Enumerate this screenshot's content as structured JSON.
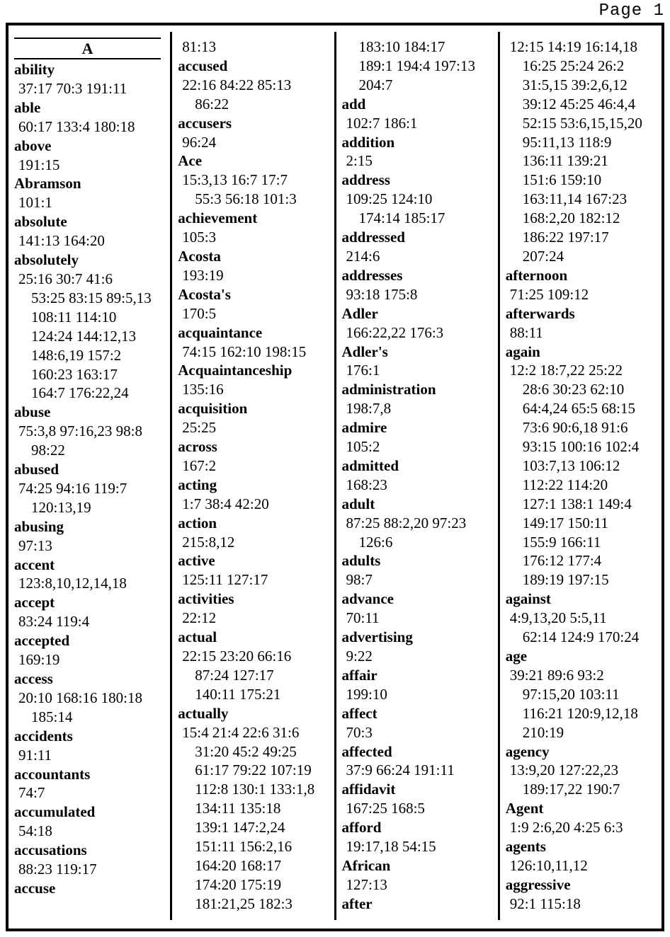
{
  "page_label": "Page 1",
  "columns": [
    {
      "lines": [
        {
          "type": "section",
          "text": "A"
        },
        {
          "type": "word",
          "text": "ability"
        },
        {
          "type": "ref1",
          "text": "37:17 70:3 191:11"
        },
        {
          "type": "word",
          "text": "able"
        },
        {
          "type": "ref1",
          "text": "60:17 133:4 180:18"
        },
        {
          "type": "word",
          "text": "above"
        },
        {
          "type": "ref1",
          "text": "191:15"
        },
        {
          "type": "word",
          "text": "Abramson"
        },
        {
          "type": "ref1",
          "text": "101:1"
        },
        {
          "type": "word",
          "text": "absolute"
        },
        {
          "type": "ref1",
          "text": "141:13 164:20"
        },
        {
          "type": "word",
          "text": "absolutely"
        },
        {
          "type": "ref1",
          "text": "25:16 30:7 41:6"
        },
        {
          "type": "ref2",
          "text": "53:25 83:15 89:5,13"
        },
        {
          "type": "ref2",
          "text": "108:11 114:10"
        },
        {
          "type": "ref2",
          "text": "124:24 144:12,13"
        },
        {
          "type": "ref2",
          "text": "148:6,19 157:2"
        },
        {
          "type": "ref2",
          "text": "160:23 163:17"
        },
        {
          "type": "ref2",
          "text": "164:7 176:22,24"
        },
        {
          "type": "word",
          "text": "abuse"
        },
        {
          "type": "ref1",
          "text": "75:3,8 97:16,23 98:8"
        },
        {
          "type": "ref2",
          "text": "98:22"
        },
        {
          "type": "word",
          "text": "abused"
        },
        {
          "type": "ref1",
          "text": "74:25 94:16 119:7"
        },
        {
          "type": "ref2",
          "text": "120:13,19"
        },
        {
          "type": "word",
          "text": "abusing"
        },
        {
          "type": "ref1",
          "text": "97:13"
        },
        {
          "type": "word",
          "text": "accent"
        },
        {
          "type": "ref1",
          "text": "123:8,10,12,14,18"
        },
        {
          "type": "word",
          "text": "accept"
        },
        {
          "type": "ref1",
          "text": "83:24 119:4"
        },
        {
          "type": "word",
          "text": "accepted"
        },
        {
          "type": "ref1",
          "text": "169:19"
        },
        {
          "type": "word",
          "text": "access"
        },
        {
          "type": "ref1",
          "text": "20:10 168:16 180:18"
        },
        {
          "type": "ref2",
          "text": "185:14"
        },
        {
          "type": "word",
          "text": "accidents"
        },
        {
          "type": "ref1",
          "text": "91:11"
        },
        {
          "type": "word",
          "text": "accountants"
        },
        {
          "type": "ref1",
          "text": "74:7"
        },
        {
          "type": "word",
          "text": "accumulated"
        },
        {
          "type": "ref1",
          "text": "54:18"
        },
        {
          "type": "word",
          "text": "accusations"
        },
        {
          "type": "ref1",
          "text": "88:23 119:17"
        },
        {
          "type": "word",
          "text": "accuse"
        }
      ]
    },
    {
      "lines": [
        {
          "type": "ref1",
          "text": "81:13"
        },
        {
          "type": "word",
          "text": "accused"
        },
        {
          "type": "ref1",
          "text": "22:16 84:22 85:13"
        },
        {
          "type": "ref2",
          "text": "86:22"
        },
        {
          "type": "word",
          "text": "accusers"
        },
        {
          "type": "ref1",
          "text": "96:24"
        },
        {
          "type": "word",
          "text": "Ace"
        },
        {
          "type": "ref1",
          "text": "15:3,13 16:7 17:7"
        },
        {
          "type": "ref2",
          "text": "55:3 56:18 101:3"
        },
        {
          "type": "word",
          "text": "achievement"
        },
        {
          "type": "ref1",
          "text": "105:3"
        },
        {
          "type": "word",
          "text": "Acosta"
        },
        {
          "type": "ref1",
          "text": "193:19"
        },
        {
          "type": "word",
          "text": "Acosta's"
        },
        {
          "type": "ref1",
          "text": "170:5"
        },
        {
          "type": "word",
          "text": "acquaintance"
        },
        {
          "type": "ref1",
          "text": "74:15 162:10 198:15"
        },
        {
          "type": "word",
          "text": "Acquaintanceship"
        },
        {
          "type": "ref1",
          "text": "135:16"
        },
        {
          "type": "word",
          "text": "acquisition"
        },
        {
          "type": "ref1",
          "text": "25:25"
        },
        {
          "type": "word",
          "text": "across"
        },
        {
          "type": "ref1",
          "text": "167:2"
        },
        {
          "type": "word",
          "text": "acting"
        },
        {
          "type": "ref1",
          "text": "1:7 38:4 42:20"
        },
        {
          "type": "word",
          "text": "action"
        },
        {
          "type": "ref1",
          "text": "215:8,12"
        },
        {
          "type": "word",
          "text": "active"
        },
        {
          "type": "ref1",
          "text": "125:11 127:17"
        },
        {
          "type": "word",
          "text": "activities"
        },
        {
          "type": "ref1",
          "text": "22:12"
        },
        {
          "type": "word",
          "text": "actual"
        },
        {
          "type": "ref1",
          "text": "22:15 23:20 66:16"
        },
        {
          "type": "ref2",
          "text": "87:24 127:17"
        },
        {
          "type": "ref2",
          "text": "140:11 175:21"
        },
        {
          "type": "word",
          "text": "actually"
        },
        {
          "type": "ref1",
          "text": "15:4 21:4 22:6 31:6"
        },
        {
          "type": "ref2",
          "text": "31:20 45:2 49:25"
        },
        {
          "type": "ref2",
          "text": "61:17 79:22 107:19"
        },
        {
          "type": "ref2",
          "text": "112:8 130:1 133:1,8"
        },
        {
          "type": "ref2",
          "text": "134:11 135:18"
        },
        {
          "type": "ref2",
          "text": "139:1 147:2,24"
        },
        {
          "type": "ref2",
          "text": "151:11 156:2,16"
        },
        {
          "type": "ref2",
          "text": "164:20 168:17"
        },
        {
          "type": "ref2",
          "text": "174:20 175:19"
        },
        {
          "type": "ref2",
          "text": "181:21,25 182:3"
        }
      ]
    },
    {
      "lines": [
        {
          "type": "ref2",
          "text": "183:10 184:17"
        },
        {
          "type": "ref2",
          "text": "189:1 194:4 197:13"
        },
        {
          "type": "ref2",
          "text": "204:7"
        },
        {
          "type": "word",
          "text": "add"
        },
        {
          "type": "ref1",
          "text": "102:7 186:1"
        },
        {
          "type": "word",
          "text": "addition"
        },
        {
          "type": "ref1",
          "text": "2:15"
        },
        {
          "type": "word",
          "text": "address"
        },
        {
          "type": "ref1",
          "text": "109:25 124:10"
        },
        {
          "type": "ref2",
          "text": "174:14 185:17"
        },
        {
          "type": "word",
          "text": "addressed"
        },
        {
          "type": "ref1",
          "text": "214:6"
        },
        {
          "type": "word",
          "text": "addresses"
        },
        {
          "type": "ref1",
          "text": "93:18 175:8"
        },
        {
          "type": "word",
          "text": "Adler"
        },
        {
          "type": "ref1",
          "text": "166:22,22 176:3"
        },
        {
          "type": "word",
          "text": "Adler's"
        },
        {
          "type": "ref1",
          "text": "176:1"
        },
        {
          "type": "word",
          "text": "administration"
        },
        {
          "type": "ref1",
          "text": "198:7,8"
        },
        {
          "type": "word",
          "text": "admire"
        },
        {
          "type": "ref1",
          "text": "105:2"
        },
        {
          "type": "word",
          "text": "admitted"
        },
        {
          "type": "ref1",
          "text": "168:23"
        },
        {
          "type": "word",
          "text": "adult"
        },
        {
          "type": "ref1",
          "text": "87:25 88:2,20 97:23"
        },
        {
          "type": "ref2",
          "text": "126:6"
        },
        {
          "type": "word",
          "text": "adults"
        },
        {
          "type": "ref1",
          "text": "98:7"
        },
        {
          "type": "word",
          "text": "advance"
        },
        {
          "type": "ref1",
          "text": "70:11"
        },
        {
          "type": "word",
          "text": "advertising"
        },
        {
          "type": "ref1",
          "text": "9:22"
        },
        {
          "type": "word",
          "text": "affair"
        },
        {
          "type": "ref1",
          "text": "199:10"
        },
        {
          "type": "word",
          "text": "affect"
        },
        {
          "type": "ref1",
          "text": "70:3"
        },
        {
          "type": "word",
          "text": "affected"
        },
        {
          "type": "ref1",
          "text": "37:9 66:24 191:11"
        },
        {
          "type": "word",
          "text": "affidavit"
        },
        {
          "type": "ref1",
          "text": "167:25 168:5"
        },
        {
          "type": "word",
          "text": "afford"
        },
        {
          "type": "ref1",
          "text": "19:17,18 54:15"
        },
        {
          "type": "word",
          "text": "African"
        },
        {
          "type": "ref1",
          "text": "127:13"
        },
        {
          "type": "word",
          "text": "after"
        }
      ]
    },
    {
      "lines": [
        {
          "type": "ref1",
          "text": "12:15 14:19 16:14,18"
        },
        {
          "type": "ref2",
          "text": "16:25 25:24 26:2"
        },
        {
          "type": "ref2",
          "text": "31:5,15 39:2,6,12"
        },
        {
          "type": "ref2",
          "text": "39:12 45:25 46:4,4"
        },
        {
          "type": "ref2",
          "text": "52:15 53:6,15,15,20"
        },
        {
          "type": "ref2",
          "text": "95:11,13 118:9"
        },
        {
          "type": "ref2",
          "text": "136:11 139:21"
        },
        {
          "type": "ref2",
          "text": "151:6 159:10"
        },
        {
          "type": "ref2",
          "text": "163:11,14 167:23"
        },
        {
          "type": "ref2",
          "text": "168:2,20 182:12"
        },
        {
          "type": "ref2",
          "text": "186:22 197:17"
        },
        {
          "type": "ref2",
          "text": "207:24"
        },
        {
          "type": "word",
          "text": "afternoon"
        },
        {
          "type": "ref1",
          "text": "71:25 109:12"
        },
        {
          "type": "word",
          "text": "afterwards"
        },
        {
          "type": "ref1",
          "text": "88:11"
        },
        {
          "type": "word",
          "text": "again"
        },
        {
          "type": "ref1",
          "text": "12:2 18:7,22 25:22"
        },
        {
          "type": "ref2",
          "text": "28:6 30:23 62:10"
        },
        {
          "type": "ref2",
          "text": "64:4,24 65:5 68:15"
        },
        {
          "type": "ref2",
          "text": "73:6 90:6,18 91:6"
        },
        {
          "type": "ref2",
          "text": "93:15 100:16 102:4"
        },
        {
          "type": "ref2",
          "text": "103:7,13 106:12"
        },
        {
          "type": "ref2",
          "text": "112:22 114:20"
        },
        {
          "type": "ref2",
          "text": "127:1 138:1 149:4"
        },
        {
          "type": "ref2",
          "text": "149:17 150:11"
        },
        {
          "type": "ref2",
          "text": "155:9 166:11"
        },
        {
          "type": "ref2",
          "text": "176:12 177:4"
        },
        {
          "type": "ref2",
          "text": "189:19 197:15"
        },
        {
          "type": "word",
          "text": "against"
        },
        {
          "type": "ref1",
          "text": "4:9,13,20 5:5,11"
        },
        {
          "type": "ref2",
          "text": "62:14 124:9 170:24"
        },
        {
          "type": "word",
          "text": "age"
        },
        {
          "type": "ref1",
          "text": "39:21 89:6 93:2"
        },
        {
          "type": "ref2",
          "text": "97:15,20 103:11"
        },
        {
          "type": "ref2",
          "text": "116:21 120:9,12,18"
        },
        {
          "type": "ref2",
          "text": "210:19"
        },
        {
          "type": "word",
          "text": "agency"
        },
        {
          "type": "ref1",
          "text": "13:9,20 127:22,23"
        },
        {
          "type": "ref2",
          "text": "189:17,22 190:7"
        },
        {
          "type": "word",
          "text": "Agent"
        },
        {
          "type": "ref1",
          "text": "1:9 2:6,20 4:25 6:3"
        },
        {
          "type": "word",
          "text": "agents"
        },
        {
          "type": "ref1",
          "text": "126:10,11,12"
        },
        {
          "type": "word",
          "text": "aggressive"
        },
        {
          "type": "ref1",
          "text": "92:1 115:18"
        }
      ]
    }
  ]
}
